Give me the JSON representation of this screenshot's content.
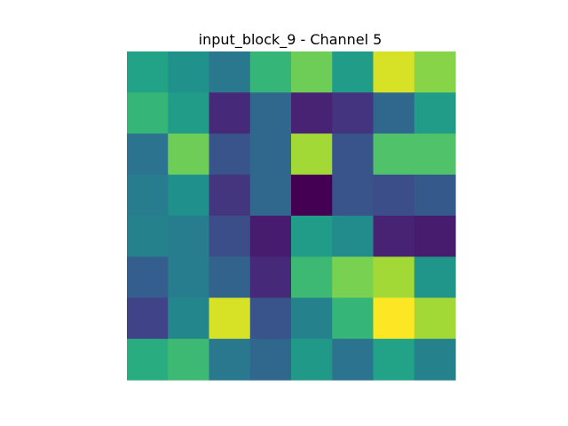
{
  "chart_data": {
    "type": "heatmap",
    "title": "input_block_9 - Channel 5",
    "colormap": "viridis",
    "axes_visible": false,
    "grid": false,
    "rows": 8,
    "cols": 8,
    "values": [
      [
        0.58,
        0.51,
        0.4,
        0.66,
        0.78,
        0.55,
        0.94,
        0.82
      ],
      [
        0.66,
        0.55,
        0.12,
        0.34,
        0.1,
        0.15,
        0.34,
        0.55
      ],
      [
        0.38,
        0.78,
        0.26,
        0.34,
        0.86,
        0.26,
        0.72,
        0.72
      ],
      [
        0.42,
        0.5,
        0.16,
        0.34,
        0.0,
        0.26,
        0.24,
        0.28
      ],
      [
        0.44,
        0.42,
        0.24,
        0.08,
        0.55,
        0.48,
        0.1,
        0.08
      ],
      [
        0.3,
        0.42,
        0.32,
        0.12,
        0.68,
        0.8,
        0.86,
        0.52
      ],
      [
        0.2,
        0.46,
        0.94,
        0.26,
        0.44,
        0.66,
        1.0,
        0.86
      ],
      [
        0.62,
        0.68,
        0.4,
        0.34,
        0.54,
        0.38,
        0.58,
        0.44
      ]
    ]
  }
}
